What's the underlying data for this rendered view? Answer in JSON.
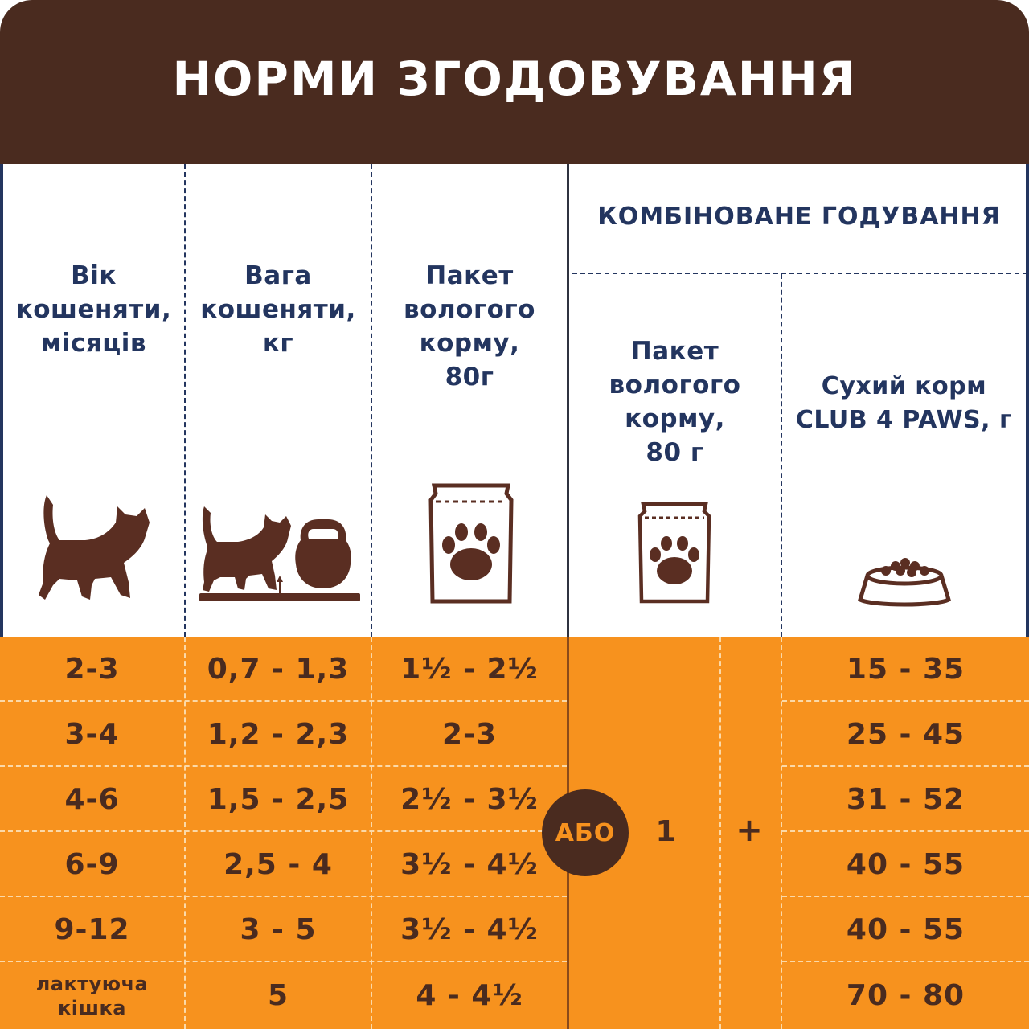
{
  "title": "НОРМИ ЗГОДОВУВАННЯ",
  "headers": {
    "age": [
      "Вік",
      "кошеняти,",
      "місяців"
    ],
    "weight": [
      "Вага",
      "кошеняти,",
      "кг"
    ],
    "wet": [
      "Пакет",
      "вологого",
      "корму,",
      "80г"
    ],
    "combined_title": "КОМБІНОВАНЕ ГОДУВАННЯ",
    "combined_wet": [
      "Пакет",
      "вологого",
      "корму,",
      "80 г"
    ],
    "combined_dry": [
      "Сухий корм",
      "CLUB 4 PAWS, г"
    ]
  },
  "icons": {
    "age": "cat-icon",
    "weight": "cat-kettlebell-icon",
    "wet": "pouch-paw-icon",
    "combined_wet": "pouch-paw-icon",
    "combined_dry": "food-bowl-icon"
  },
  "rows": [
    {
      "age": "2-3",
      "weight": "0,7 - 1,3",
      "wet": "1½ - 2½",
      "dry": "15 - 35"
    },
    {
      "age": "3-4",
      "weight": "1,2 - 2,3",
      "wet": "2-3",
      "dry": "25 - 45"
    },
    {
      "age": "4-6",
      "weight": "1,5 - 2,5",
      "wet": "2½ - 3½",
      "dry": "31 - 52"
    },
    {
      "age": "6-9",
      "weight": "2,5 - 4",
      "wet": "3½ - 4½",
      "dry": "40 - 55"
    },
    {
      "age": "9-12",
      "weight": "3 - 5",
      "wet": "3½ - 4½",
      "dry": "40 - 55"
    },
    {
      "age": "лактуюча кішка",
      "age_lines": [
        "лактуюча",
        "кішка"
      ],
      "weight": "5",
      "wet": "4 - 4½",
      "dry": "70 - 80"
    }
  ],
  "combined": {
    "or_label": "АБО",
    "wet_amount": "1",
    "plus": "+"
  },
  "colors": {
    "banner": "#4a2b1f",
    "header_text": "#23355f",
    "table_bg": "#f7921e",
    "cell_text": "#4a2b1f"
  }
}
